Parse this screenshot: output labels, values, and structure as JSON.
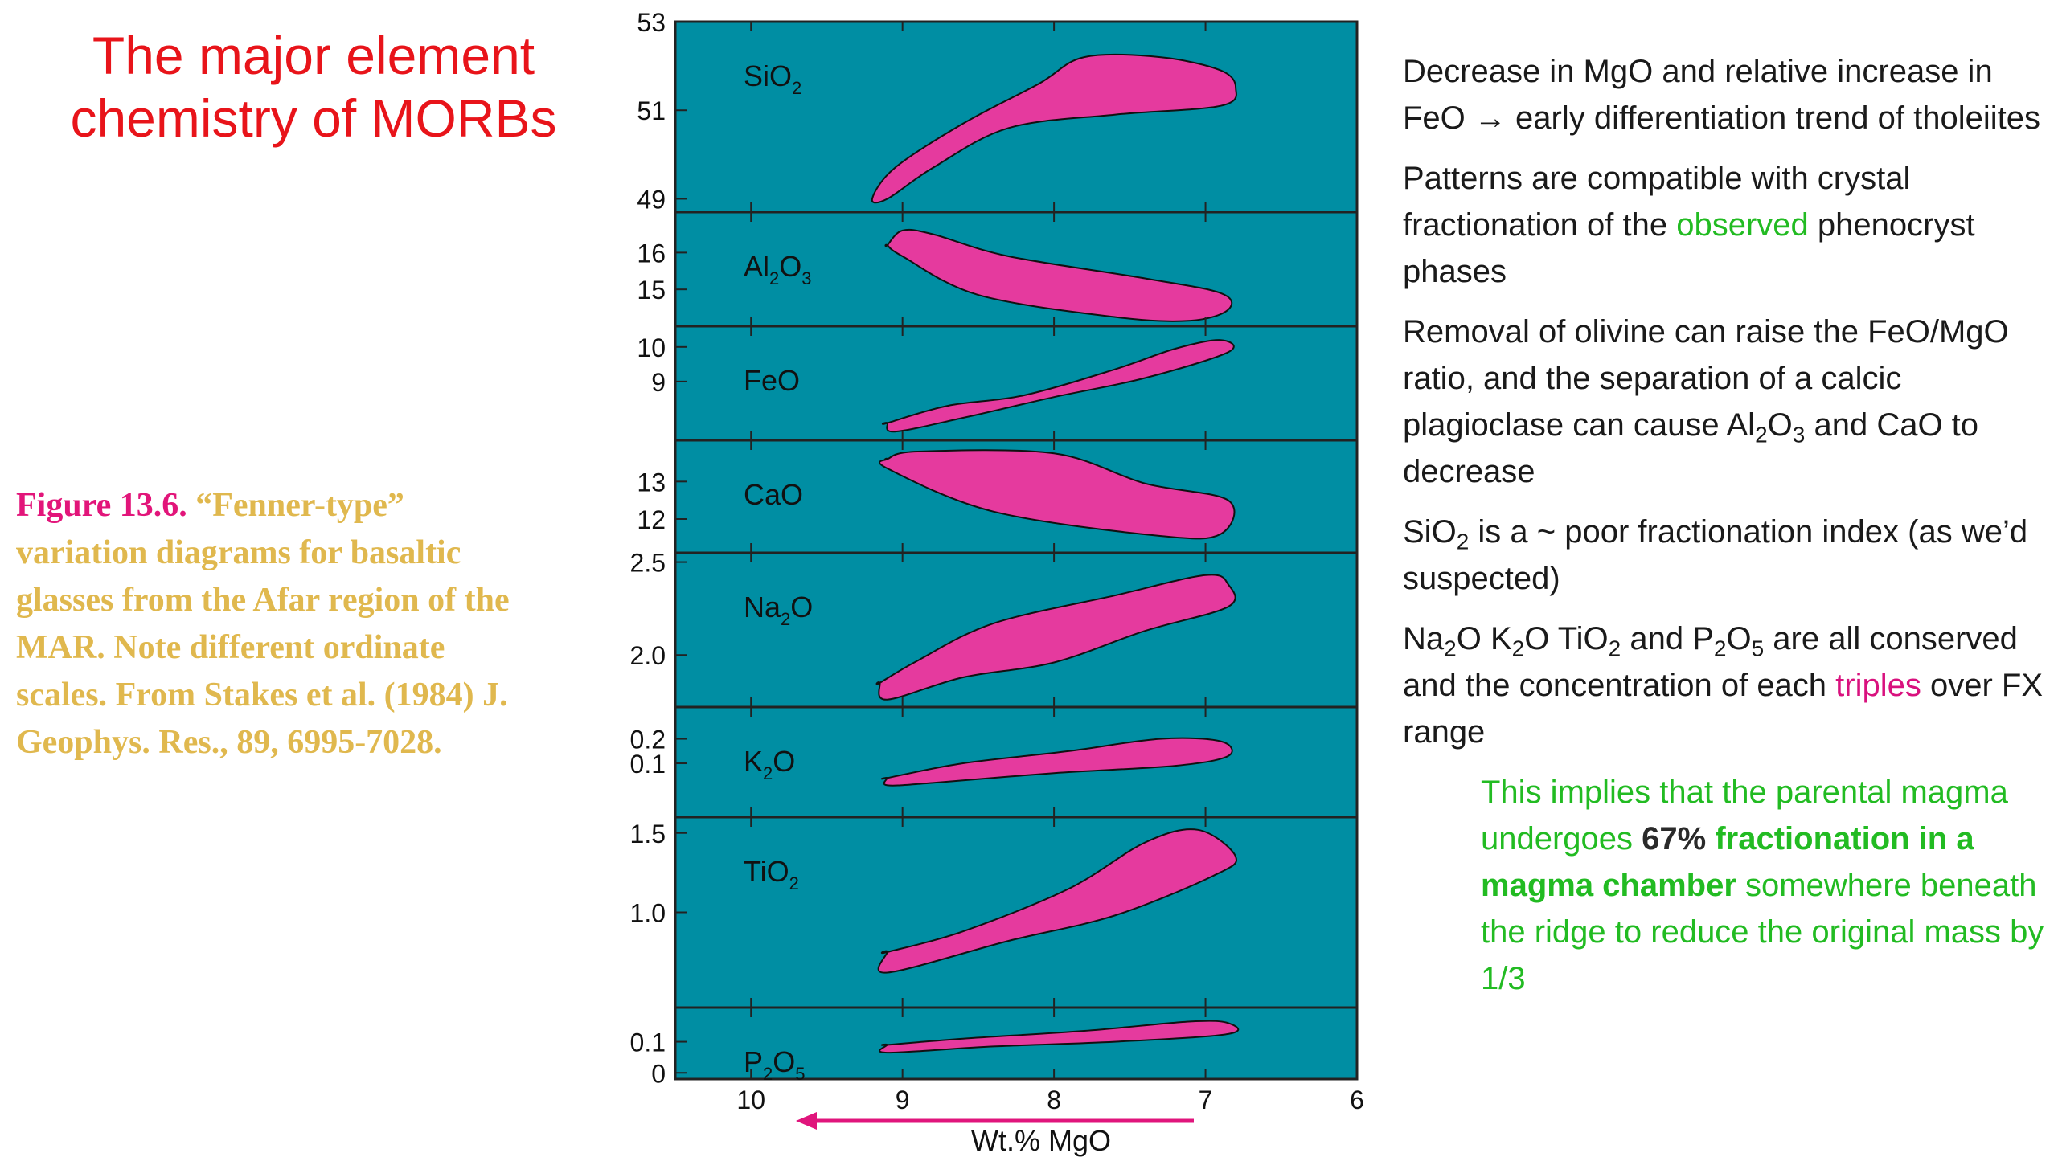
{
  "title": "The major element chemistry of MORBs",
  "caption": {
    "figure": "Figure 13.6.",
    "text": "“Fenner-type” variation diagrams for basaltic glasses from the Afar region of the MAR. Note different ordinate scales. From Stakes et al. (1984) J. Geophys. Res., 89, 6995-7028."
  },
  "bullets": {
    "b1_part1": "Decrease in MgO and relative increase in FeO ",
    "b1_arrow": "→",
    "b1_part2": " early differentiation trend of tholeiites",
    "b2_part1": "Patterns are compatible with crystal fractionation of the ",
    "b2_green": "observed",
    "b2_part2": " phenocryst phases",
    "b3_part1": "Removal of olivine can raise the FeO/MgO ratio, and the separation of a calcic plagioclase can cause Al",
    "b3_sub1": "2",
    "b3_mid1": "O",
    "b3_sub2": "3",
    "b3_part2": " and CaO to decrease",
    "b4_part1": "SiO",
    "b4_sub": "2",
    "b4_part2": " is a ~ poor fractionation index (as we’d suspected)",
    "b5_na": "Na",
    "b5_na_sub": "2",
    "b5_k": "O K",
    "b5_k_sub": "2",
    "b5_ti": "O TiO",
    "b5_ti_sub": "2",
    "b5_p": " and P",
    "b5_p_sub1": "2",
    "b5_o": "O",
    "b5_p_sub2": "5",
    "b5_part2": " are all conserved and the concentration of each ",
    "b5_pink": "triples",
    "b5_part3": " over FX range",
    "sub_part1": "This implies that the parental magma undergoes ",
    "sub_bold_dark": "67%",
    "sub_bold_green": "fractionation in a magma chamber",
    "sub_part2": " somewhere beneath the ridge to reduce the original mass by 1/3"
  },
  "chart_data": {
    "type": "area",
    "xlabel": "Wt.% MgO",
    "xticks": [
      10,
      9,
      8,
      7,
      6
    ],
    "xlim": [
      10.5,
      6.0
    ],
    "reversed_x": true,
    "colors": {
      "panel": "#008ea3",
      "field": "#e53a9e",
      "arrow": "#e0157c"
    },
    "panels": [
      {
        "name": "SiO",
        "sub": "2",
        "sub2": "",
        "suffix": "",
        "ylim": [
          48.7,
          53
        ],
        "ticks": [
          "53",
          "51",
          "49"
        ],
        "tick_values": [
          53,
          51,
          49
        ],
        "envelope": [
          [
            9.2,
            49.0
          ],
          [
            9.05,
            49.7
          ],
          [
            8.6,
            50.7
          ],
          [
            8.1,
            51.6
          ],
          [
            7.8,
            52.2
          ],
          [
            7.3,
            52.2
          ],
          [
            6.9,
            51.9
          ],
          [
            6.8,
            51.5
          ],
          [
            6.9,
            51.1
          ],
          [
            7.6,
            50.9
          ],
          [
            8.3,
            50.6
          ],
          [
            8.8,
            49.7
          ],
          [
            9.1,
            49.0
          ]
        ]
      },
      {
        "name": "Al",
        "sub": "2",
        "sub2": "3",
        "suffix": "",
        "ylim": [
          14.0,
          17.1
        ],
        "ticks": [
          "16",
          "15"
        ],
        "tick_values": [
          16,
          15
        ],
        "envelope": [
          [
            9.1,
            16.2
          ],
          [
            9.0,
            16.6
          ],
          [
            8.8,
            16.5
          ],
          [
            8.3,
            15.9
          ],
          [
            7.4,
            15.3
          ],
          [
            6.9,
            14.9
          ],
          [
            6.85,
            14.45
          ],
          [
            7.1,
            14.15
          ],
          [
            7.6,
            14.25
          ],
          [
            8.5,
            14.85
          ],
          [
            9.0,
            15.9
          ],
          [
            9.1,
            16.2
          ]
        ]
      },
      {
        "name": "FeO",
        "sub": "",
        "sub2": "",
        "suffix": "",
        "ylim": [
          7.3,
          10.6
        ],
        "ticks": [
          "10",
          "9"
        ],
        "tick_values": [
          10,
          9
        ],
        "envelope": [
          [
            9.1,
            7.8
          ],
          [
            8.7,
            8.3
          ],
          [
            8.2,
            8.6
          ],
          [
            7.6,
            9.35
          ],
          [
            7.2,
            9.95
          ],
          [
            6.9,
            10.2
          ],
          [
            6.85,
            9.85
          ],
          [
            7.4,
            9.1
          ],
          [
            8.0,
            8.55
          ],
          [
            8.6,
            7.95
          ],
          [
            9.05,
            7.55
          ],
          [
            9.1,
            7.8
          ]
        ]
      },
      {
        "name": "CaO",
        "sub": "",
        "sub2": "",
        "suffix": "",
        "ylim": [
          11.1,
          14.1
        ],
        "ticks": [
          "13",
          "12"
        ],
        "tick_values": [
          13,
          12
        ],
        "envelope": [
          [
            9.1,
            13.6
          ],
          [
            8.9,
            13.8
          ],
          [
            8.0,
            13.75
          ],
          [
            7.4,
            12.95
          ],
          [
            6.85,
            12.5
          ],
          [
            6.9,
            11.6
          ],
          [
            7.3,
            11.55
          ],
          [
            8.4,
            12.2
          ],
          [
            9.1,
            13.35
          ],
          [
            9.1,
            13.6
          ]
        ]
      },
      {
        "name": "Na",
        "sub": "2",
        "sub2": "",
        "suffix": "O",
        "ylim": [
          1.72,
          2.55
        ],
        "ticks": [
          "2.5",
          "2.0"
        ],
        "tick_values": [
          2.5,
          2.0
        ],
        "envelope": [
          [
            9.15,
            1.85
          ],
          [
            8.9,
            1.97
          ],
          [
            8.4,
            2.17
          ],
          [
            7.6,
            2.32
          ],
          [
            7.0,
            2.43
          ],
          [
            6.85,
            2.38
          ],
          [
            6.85,
            2.26
          ],
          [
            7.4,
            2.13
          ],
          [
            8.0,
            1.96
          ],
          [
            8.6,
            1.88
          ],
          [
            9.1,
            1.76
          ],
          [
            9.15,
            1.85
          ]
        ]
      },
      {
        "name": "K",
        "sub": "2",
        "sub2": "",
        "suffix": "O",
        "ylim": [
          -0.12,
          0.33
        ],
        "ticks": [
          "0.2",
          "0.1"
        ],
        "tick_values": [
          0.2,
          0.1
        ],
        "envelope": [
          [
            9.1,
            0.04
          ],
          [
            8.6,
            0.1
          ],
          [
            7.9,
            0.15
          ],
          [
            7.3,
            0.2
          ],
          [
            6.9,
            0.19
          ],
          [
            6.85,
            0.13
          ],
          [
            7.2,
            0.09
          ],
          [
            8.0,
            0.06
          ],
          [
            8.8,
            0.02
          ],
          [
            9.1,
            0.01
          ],
          [
            9.1,
            0.04
          ]
        ]
      },
      {
        "name": "TiO",
        "sub": "2",
        "sub2": "",
        "suffix": "",
        "ylim": [
          0.4,
          1.6
        ],
        "ticks": [
          "1.5",
          "1.0"
        ],
        "tick_values": [
          1.5,
          1.0
        ],
        "envelope": [
          [
            9.1,
            0.75
          ],
          [
            8.6,
            0.88
          ],
          [
            7.9,
            1.15
          ],
          [
            7.4,
            1.44
          ],
          [
            7.05,
            1.52
          ],
          [
            6.8,
            1.35
          ],
          [
            6.95,
            1.23
          ],
          [
            7.6,
            0.98
          ],
          [
            8.3,
            0.82
          ],
          [
            9.1,
            0.62
          ],
          [
            9.1,
            0.75
          ]
        ]
      },
      {
        "name": "P",
        "sub": "2",
        "sub2": "5",
        "suffix": "",
        "ylim": [
          -0.02,
          0.21
        ],
        "ticks": [
          "0.1",
          "0"
        ],
        "tick_values": [
          0.1,
          0.0
        ],
        "envelope": [
          [
            9.1,
            0.09
          ],
          [
            8.6,
            0.11
          ],
          [
            7.8,
            0.135
          ],
          [
            7.1,
            0.165
          ],
          [
            6.85,
            0.16
          ],
          [
            6.85,
            0.125
          ],
          [
            7.6,
            0.1
          ],
          [
            8.4,
            0.085
          ],
          [
            9.1,
            0.065
          ],
          [
            9.1,
            0.09
          ]
        ]
      }
    ]
  }
}
